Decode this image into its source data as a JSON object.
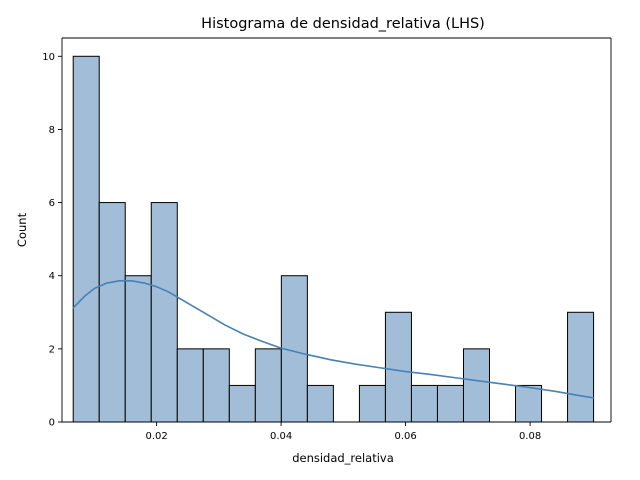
{
  "chart_data": {
    "type": "bar",
    "title": "Histograma de densidad_relativa (LHS)",
    "xlabel": "densidad_relativa",
    "ylabel": "Count",
    "xlim": [
      0.0048,
      0.093
    ],
    "ylim": [
      0,
      10.5
    ],
    "xticks": [
      0.02,
      0.04,
      0.06,
      0.08
    ],
    "xtick_labels": [
      "0.02",
      "0.04",
      "0.06",
      "0.08"
    ],
    "yticks": [
      0,
      2,
      4,
      6,
      8,
      10
    ],
    "ytick_labels": [
      "0",
      "2",
      "4",
      "6",
      "8",
      "10"
    ],
    "bin_edges": [
      0.0066,
      0.01078,
      0.01496,
      0.01914,
      0.02332,
      0.0275,
      0.03168,
      0.03586,
      0.04004,
      0.04422,
      0.0484,
      0.05258,
      0.05676,
      0.06094,
      0.06512,
      0.0693,
      0.07348,
      0.07766,
      0.08184,
      0.08602,
      0.0902
    ],
    "counts": [
      10,
      6,
      4,
      6,
      2,
      2,
      1,
      2,
      4,
      1,
      0,
      1,
      3,
      1,
      1,
      2,
      0,
      1,
      0,
      3
    ],
    "kde": {
      "x": [
        0.0066,
        0.0085,
        0.01,
        0.012,
        0.014,
        0.016,
        0.018,
        0.02,
        0.022,
        0.025,
        0.028,
        0.031,
        0.034,
        0.037,
        0.04,
        0.044,
        0.048,
        0.052,
        0.056,
        0.06,
        0.064,
        0.068,
        0.072,
        0.076,
        0.08,
        0.084,
        0.088,
        0.0902
      ],
      "y": [
        3.12,
        3.45,
        3.65,
        3.8,
        3.86,
        3.86,
        3.8,
        3.7,
        3.55,
        3.25,
        2.95,
        2.65,
        2.4,
        2.2,
        2.02,
        1.85,
        1.7,
        1.58,
        1.48,
        1.38,
        1.3,
        1.21,
        1.12,
        1.03,
        0.94,
        0.84,
        0.72,
        0.66
      ]
    },
    "grid": false,
    "colors": {
      "bar_fill": "#a2bdd7",
      "bar_edge": "#000000",
      "kde_line": "#4682b4",
      "axis": "#000000"
    }
  }
}
